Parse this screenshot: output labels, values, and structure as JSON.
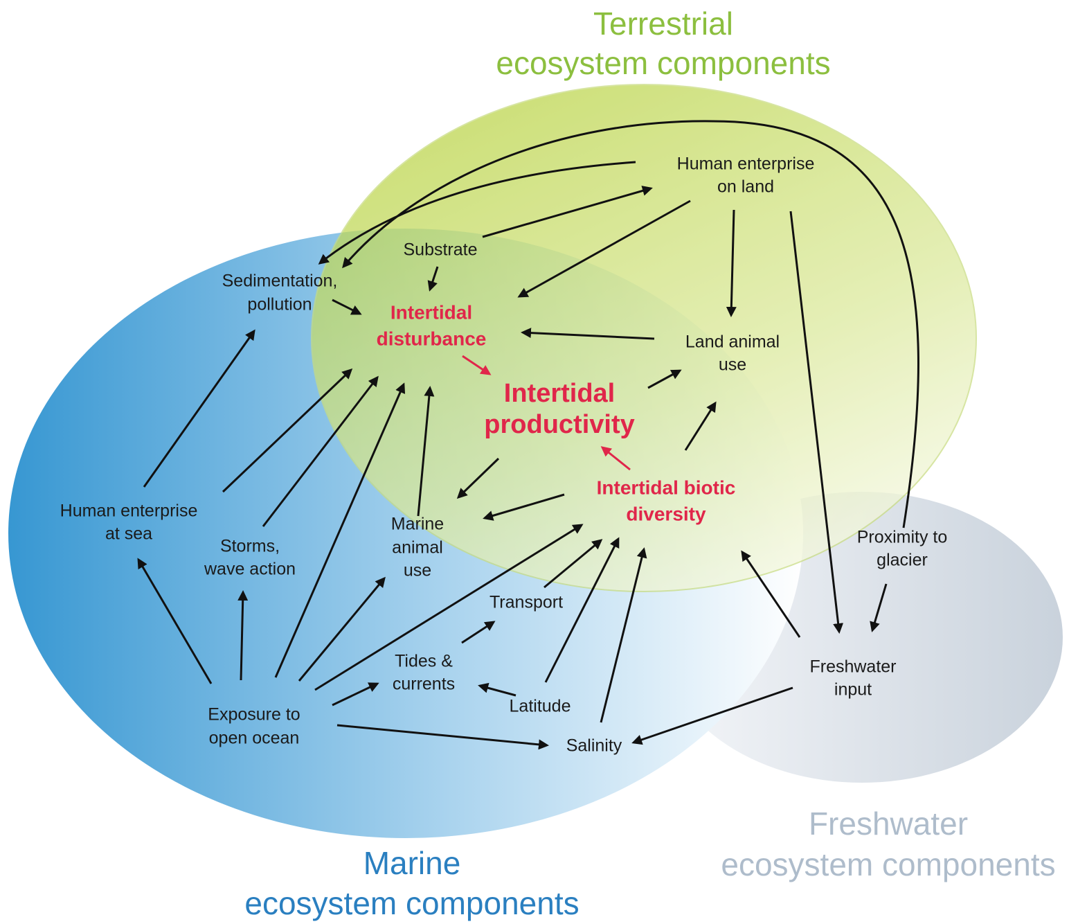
{
  "regions": [
    {
      "label": [
        "Terrestrial",
        "ecosystem components"
      ]
    },
    {
      "label": [
        "Marine",
        "ecosystem components"
      ]
    },
    {
      "label": [
        "Freshwater",
        "ecosystem components"
      ]
    }
  ],
  "nodes": [
    {
      "label": [
        "Human enterprise",
        "on land"
      ]
    },
    {
      "label": [
        "Substrate"
      ]
    },
    {
      "label": [
        "Sedimentation,",
        "pollution"
      ]
    },
    {
      "label": [
        "Intertidal",
        "disturbance"
      ]
    },
    {
      "label": [
        "Land animal",
        "use"
      ]
    },
    {
      "label": [
        "Intertidal",
        "productivity"
      ]
    },
    {
      "label": [
        "Intertidal biotic",
        "diversity"
      ]
    },
    {
      "label": [
        "Human enterprise",
        "at sea"
      ]
    },
    {
      "label": [
        "Storms,",
        "wave action"
      ]
    },
    {
      "label": [
        "Marine",
        "animal",
        "use"
      ]
    },
    {
      "label": [
        "Proximity to",
        "glacier"
      ]
    },
    {
      "label": [
        "Transport"
      ]
    },
    {
      "label": [
        "Tides &",
        "currents"
      ]
    },
    {
      "label": [
        "Latitude"
      ]
    },
    {
      "label": [
        "Freshwater",
        "input"
      ]
    },
    {
      "label": [
        "Exposure to",
        "open ocean"
      ]
    },
    {
      "label": [
        "Salinity"
      ]
    }
  ]
}
